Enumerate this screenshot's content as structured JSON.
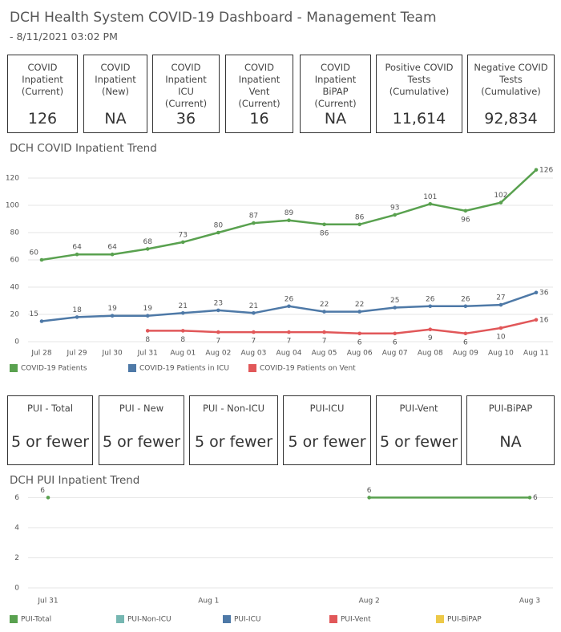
{
  "header": {
    "title": "DCH Health System COVID-19 Dashboard - Management Team",
    "subtitle": "- 8/11/2021 03:02 PM"
  },
  "kpis": [
    {
      "label": "COVID Inpatient (Current)",
      "value": "126"
    },
    {
      "label": "COVID Inpatient (New)",
      "value": "NA"
    },
    {
      "label": "COVID Inpatient ICU (Current)",
      "value": "36"
    },
    {
      "label": "COVID Inpatient Vent (Current)",
      "value": "16"
    },
    {
      "label": "COVID Inpatient BiPAP (Current)",
      "value": "NA"
    },
    {
      "label": "Positive COVID Tests (Cumulative)",
      "value": "11,614"
    },
    {
      "label": "Negative COVID Tests (Cumulative)",
      "value": "92,834"
    }
  ],
  "pui_kpis": [
    {
      "label": "PUI - Total",
      "value": "5 or fewer"
    },
    {
      "label": "PUI - New",
      "value": "5 or fewer"
    },
    {
      "label": "PUI - Non-ICU",
      "value": "5 or fewer"
    },
    {
      "label": "PUI-ICU",
      "value": "5 or fewer"
    },
    {
      "label": "PUI-Vent",
      "value": "5 or fewer"
    },
    {
      "label": "PUI-BiPAP",
      "value": "NA"
    }
  ],
  "chart_data": [
    {
      "type": "line",
      "title": "DCH COVID Inpatient Trend",
      "categories": [
        "Jul 28",
        "Jul 29",
        "Jul 30",
        "Jul 31",
        "Aug 01",
        "Aug 02",
        "Aug 03",
        "Aug 04",
        "Aug 05",
        "Aug 06",
        "Aug 07",
        "Aug 08",
        "Aug 09",
        "Aug 10",
        "Aug 11"
      ],
      "series": [
        {
          "name": "COVID-19 Patients",
          "color": "#59a14f",
          "values": [
            60,
            64,
            64,
            68,
            73,
            80,
            87,
            89,
            86,
            86,
            93,
            101,
            96,
            102,
            126
          ]
        },
        {
          "name": "COVID-19 Patients in ICU",
          "color": "#4e79a7",
          "values": [
            15,
            18,
            19,
            19,
            21,
            23,
            21,
            26,
            22,
            22,
            25,
            26,
            26,
            27,
            36
          ]
        },
        {
          "name": "COVID-19 Patients on Vent",
          "color": "#e15759",
          "values": [
            null,
            null,
            null,
            8,
            8,
            7,
            7,
            7,
            7,
            6,
            6,
            9,
            6,
            10,
            16
          ]
        }
      ],
      "ylim": [
        0,
        130
      ],
      "yticks": [
        0,
        20,
        40,
        60,
        80,
        100,
        120
      ],
      "grid": true,
      "data_labels": true,
      "legend": "bottom"
    },
    {
      "type": "line",
      "title": "DCH PUI Inpatient Trend",
      "categories": [
        "Jul 31",
        "Aug 1",
        "Aug 2",
        "Aug 3"
      ],
      "series": [
        {
          "name": "PUI-Total",
          "color": "#59a14f",
          "values": [
            6,
            null,
            6,
            6
          ]
        },
        {
          "name": "PUI-Non-ICU",
          "color": "#76b7b2",
          "values": [
            null,
            null,
            null,
            null
          ]
        },
        {
          "name": "PUI-ICU",
          "color": "#4e79a7",
          "values": [
            null,
            null,
            null,
            null
          ]
        },
        {
          "name": "PUI-Vent",
          "color": "#e15759",
          "values": [
            null,
            null,
            null,
            null
          ]
        },
        {
          "name": "PUI-BiPAP",
          "color": "#edc948",
          "values": [
            null,
            null,
            null,
            null
          ]
        }
      ],
      "ylim": [
        0,
        6.5
      ],
      "yticks": [
        0,
        2,
        4,
        6
      ],
      "grid": true,
      "data_labels": true,
      "legend": "bottom"
    }
  ]
}
